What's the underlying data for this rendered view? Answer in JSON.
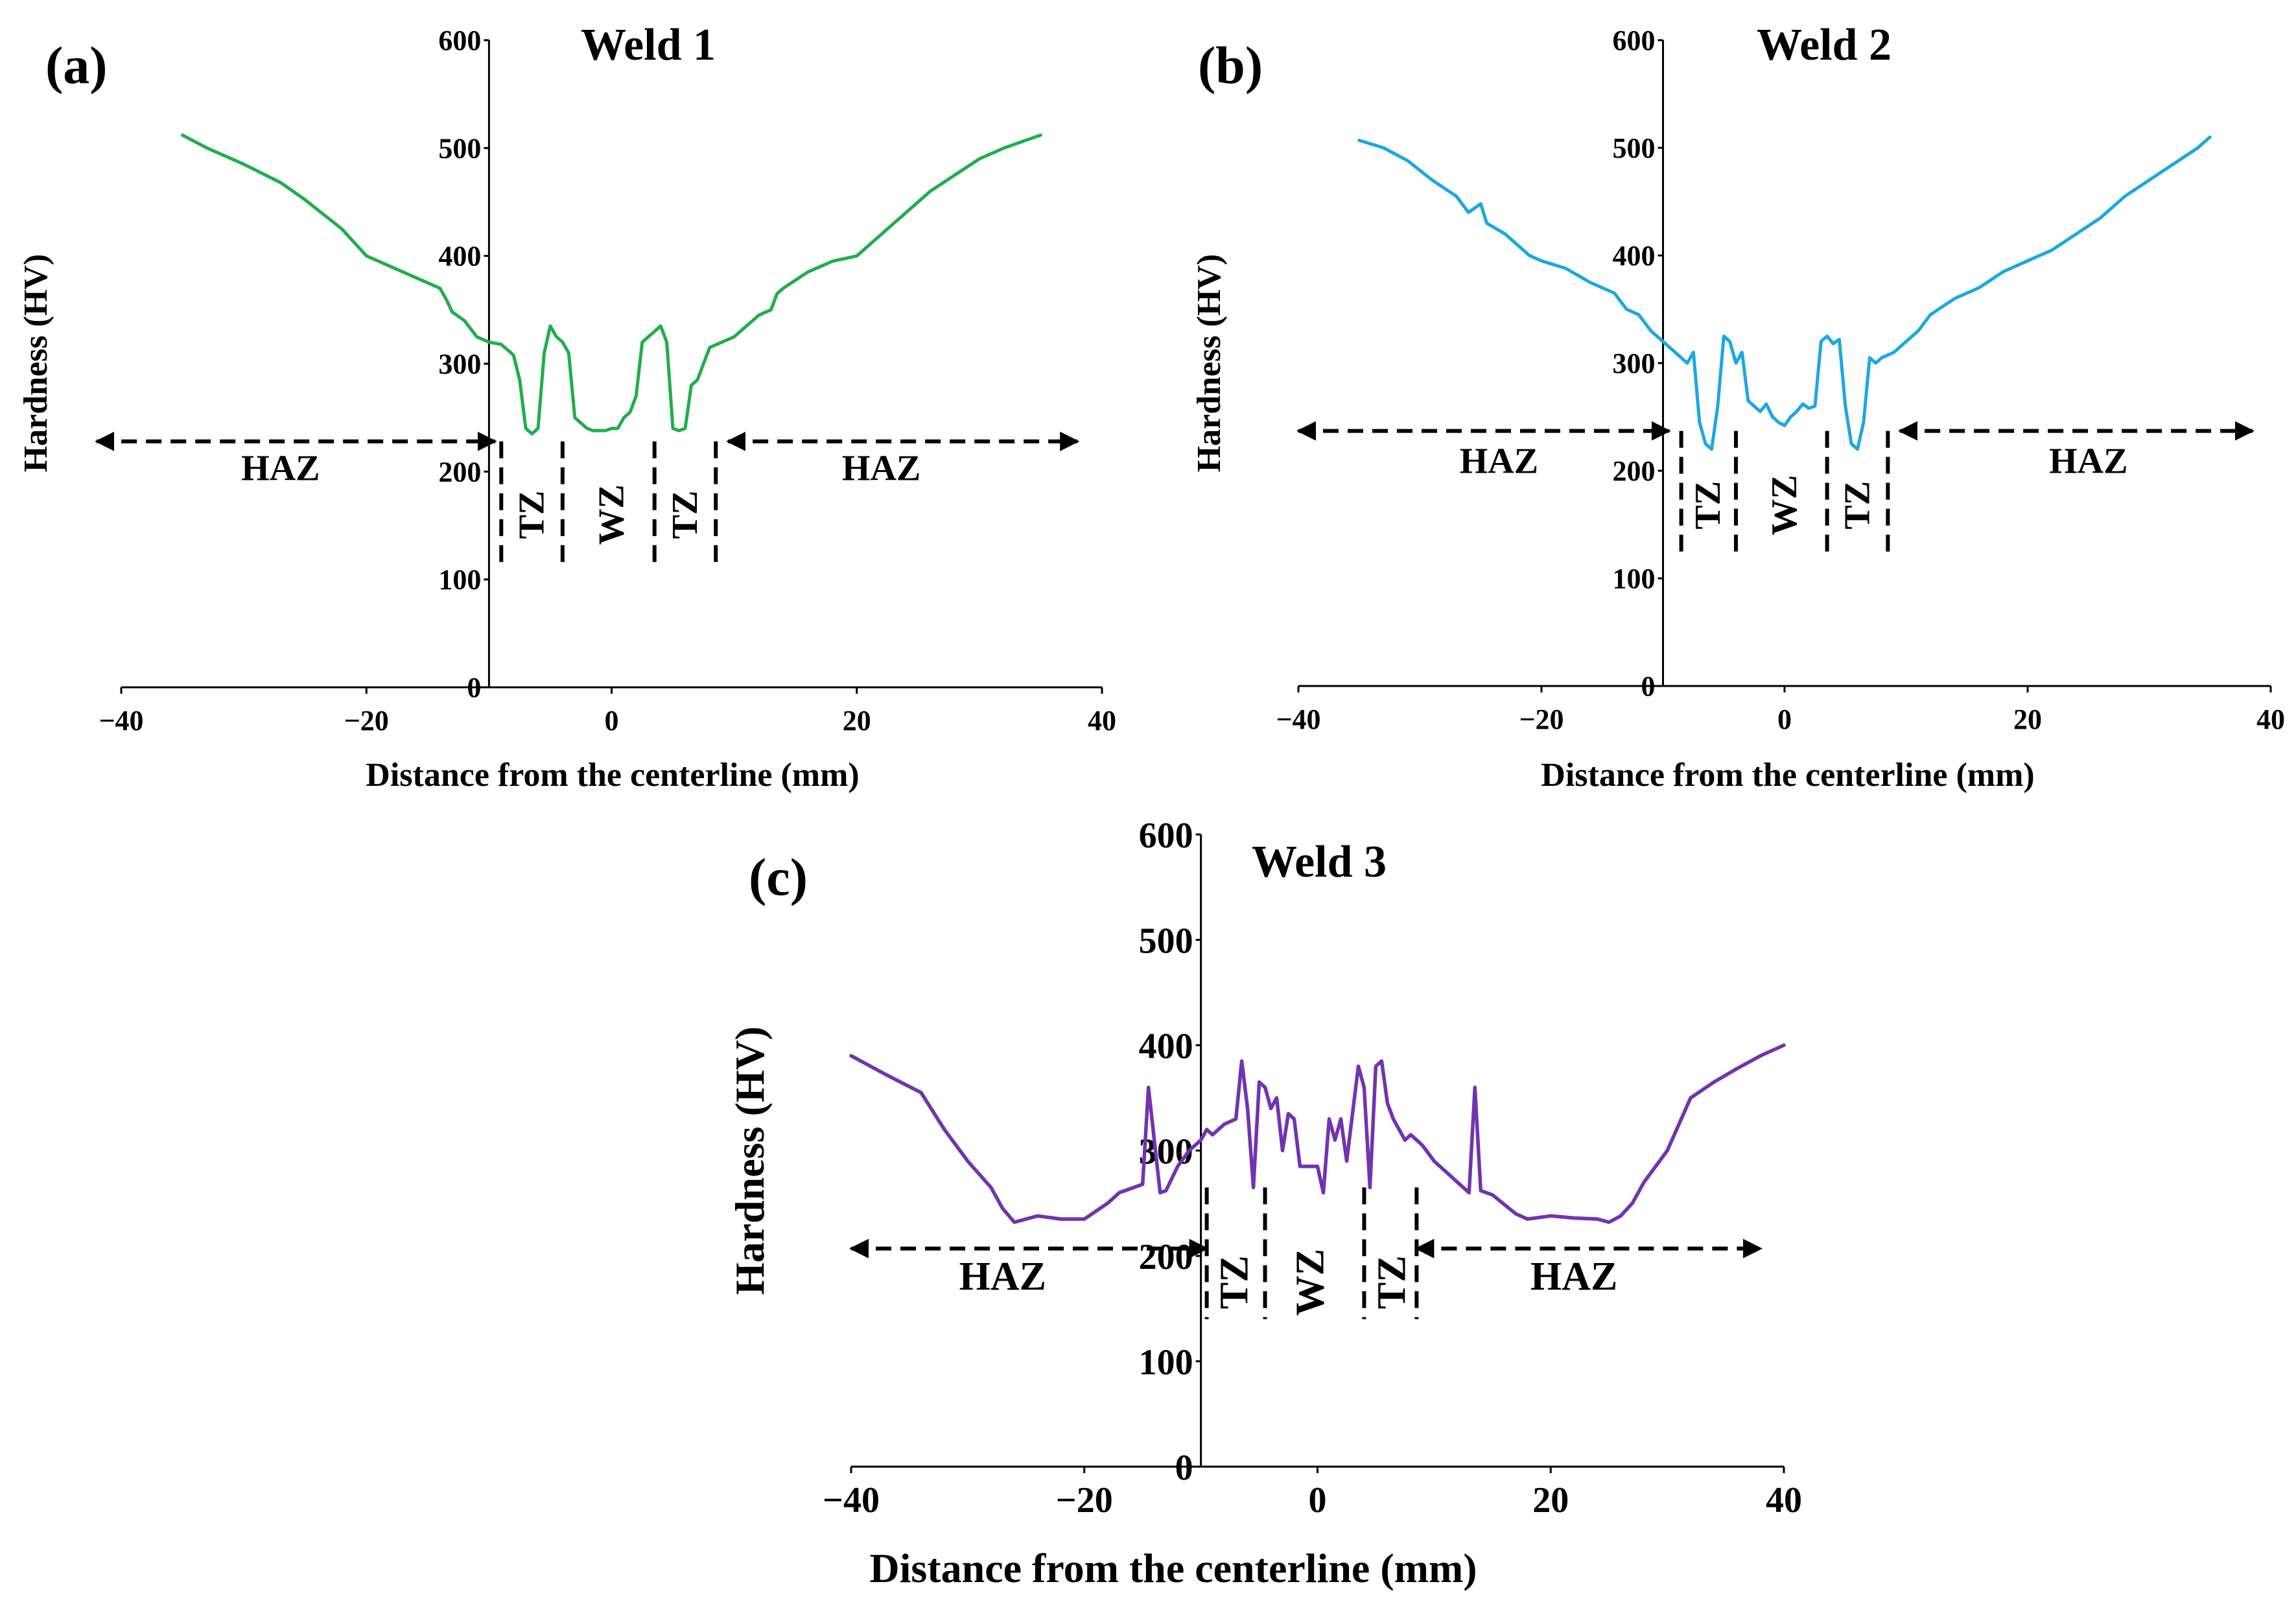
{
  "chart_data": [
    {
      "id": "a",
      "type": "line",
      "panel_label": "(a)",
      "title": "Weld 1",
      "xlabel": "Distance from the centerline (mm)",
      "ylabel": "Hardness (HV)",
      "xlim": [
        -40,
        40
      ],
      "ylim": [
        0,
        600
      ],
      "x_ticks": [
        -40,
        -20,
        0,
        20,
        40
      ],
      "x_tick_labels": [
        "−40",
        "−20",
        "0",
        "20",
        "40"
      ],
      "y_ticks": [
        0,
        100,
        200,
        300,
        400,
        500,
        600
      ],
      "y_tick_labels": [
        "0",
        "100",
        "200",
        "300",
        "400",
        "500",
        "600"
      ],
      "color": "#1fae4a",
      "series": [
        {
          "name": "Weld 1",
          "x": [
            -35,
            -33,
            -30,
            -27,
            -25,
            -22,
            -20,
            -18,
            -16,
            -14,
            -13.5,
            -13,
            -12,
            -11,
            -10,
            -9,
            -8,
            -7.5,
            -7,
            -6.5,
            -6,
            -5.5,
            -5,
            -4.5,
            -4,
            -3.5,
            -3,
            -2.5,
            -2,
            -1.5,
            -1,
            -0.5,
            0,
            0.5,
            1,
            1.5,
            2,
            2.5,
            3,
            3.5,
            4,
            4.5,
            5,
            5.5,
            6,
            6.5,
            7,
            7.5,
            8,
            9,
            10,
            12,
            13,
            13.5,
            14,
            16,
            18,
            20,
            22,
            24,
            26,
            28,
            30,
            32,
            34,
            35
          ],
          "y": [
            512,
            500,
            485,
            468,
            452,
            425,
            400,
            390,
            380,
            370,
            360,
            348,
            340,
            325,
            320,
            318,
            308,
            285,
            240,
            235,
            240,
            310,
            335,
            325,
            320,
            310,
            250,
            245,
            240,
            238,
            238,
            238,
            240,
            240,
            250,
            255,
            270,
            320,
            325,
            330,
            335,
            320,
            240,
            238,
            240,
            280,
            285,
            300,
            315,
            320,
            325,
            345,
            350,
            365,
            370,
            385,
            395,
            400,
            420,
            440,
            460,
            475,
            490,
            500,
            508,
            512
          ]
        }
      ],
      "arrows": [
        [
          -42,
          -9.5
        ],
        [
          9.5,
          38
        ]
      ],
      "arrow_y": 228,
      "zone_lines_x": [
        -9,
        -4,
        3.5,
        8.5
      ],
      "zone_lines_y": [
        113,
        228
      ],
      "zone_labels": [
        {
          "text": "HAZ",
          "x": -27,
          "y": 192,
          "rotate": false
        },
        {
          "text": "TZ",
          "x": -6.5,
          "y": 160,
          "rotate": true
        },
        {
          "text": "WZ",
          "x": 0,
          "y": 160,
          "rotate": true
        },
        {
          "text": "TZ",
          "x": 6,
          "y": 160,
          "rotate": true
        },
        {
          "text": "HAZ",
          "x": 22,
          "y": 192,
          "rotate": false
        }
      ]
    },
    {
      "id": "b",
      "type": "line",
      "panel_label": "(b)",
      "title": "Weld 2",
      "xlabel": "Distance from the centerline (mm)",
      "ylabel": "Hardness (HV)",
      "xlim": [
        -40,
        40
      ],
      "ylim": [
        0,
        600
      ],
      "x_ticks": [
        -40,
        -20,
        0,
        20,
        40
      ],
      "x_tick_labels": [
        "−40",
        "−20",
        "0",
        "20",
        "40"
      ],
      "y_ticks": [
        0,
        100,
        200,
        300,
        400,
        500,
        600
      ],
      "y_tick_labels": [
        "0",
        "100",
        "200",
        "300",
        "400",
        "500",
        "600"
      ],
      "color": "#1ba7e4",
      "series": [
        {
          "name": "Weld 2",
          "x": [
            -35,
            -33,
            -31,
            -29,
            -27,
            -26,
            -25,
            -24.5,
            -23,
            -22,
            -21,
            -20,
            -18,
            -16,
            -14,
            -13,
            -12,
            -11,
            -10,
            -9,
            -8.5,
            -8,
            -7.5,
            -7,
            -6.5,
            -6,
            -5.5,
            -5,
            -4.5,
            -4,
            -3.5,
            -3,
            -2.5,
            -2,
            -1.5,
            -1,
            -0.5,
            0,
            0.5,
            1,
            1.5,
            2,
            2.5,
            3,
            3.5,
            4,
            4.5,
            5,
            5.5,
            6,
            6.5,
            7,
            7.5,
            8,
            9,
            10,
            11,
            12,
            14,
            16,
            18,
            20,
            22,
            24,
            26,
            28,
            30,
            32,
            34,
            35
          ],
          "y": [
            507,
            500,
            488,
            470,
            455,
            440,
            448,
            430,
            420,
            410,
            400,
            395,
            388,
            375,
            365,
            350,
            345,
            330,
            320,
            310,
            305,
            300,
            310,
            245,
            225,
            220,
            260,
            325,
            320,
            300,
            310,
            265,
            260,
            255,
            262,
            250,
            245,
            242,
            250,
            255,
            262,
            258,
            260,
            320,
            325,
            318,
            322,
            260,
            225,
            220,
            245,
            305,
            300,
            305,
            310,
            320,
            330,
            345,
            360,
            370,
            385,
            395,
            405,
            420,
            435,
            455,
            470,
            485,
            500,
            510
          ]
        }
      ],
      "arrows": [
        [
          -40,
          -9.5
        ],
        [
          9.5,
          38.5
        ]
      ],
      "arrow_y": 237,
      "zone_lines_x": [
        -8.5,
        -4,
        3.5,
        8.5
      ],
      "zone_lines_y": [
        122,
        237
      ],
      "zone_labels": [
        {
          "text": "HAZ",
          "x": -23.5,
          "y": 198,
          "rotate": false
        },
        {
          "text": "TZ",
          "x": -6.3,
          "y": 168,
          "rotate": true
        },
        {
          "text": "WZ",
          "x": 0,
          "y": 168,
          "rotate": true
        },
        {
          "text": "TZ",
          "x": 6,
          "y": 168,
          "rotate": true
        },
        {
          "text": "HAZ",
          "x": 25,
          "y": 198,
          "rotate": false
        }
      ]
    },
    {
      "id": "c",
      "type": "line",
      "panel_label": "(c)",
      "title": "Weld 3",
      "xlabel": "Distance from the centerline (mm)",
      "ylabel": "Hardness (HV)",
      "xlim": [
        -40,
        40
      ],
      "ylim": [
        0,
        600
      ],
      "x_ticks": [
        -40,
        -20,
        0,
        20,
        40
      ],
      "x_tick_labels": [
        "−40",
        "−20",
        "0",
        "20",
        "40"
      ],
      "y_ticks": [
        0,
        100,
        200,
        300,
        400,
        500,
        600
      ],
      "y_tick_labels": [
        "0",
        "100",
        "200",
        "300",
        "400",
        "500",
        "600"
      ],
      "color": "#7233b0",
      "series": [
        {
          "name": "Weld 3",
          "x": [
            -40,
            -37,
            -34,
            -32,
            -30,
            -28,
            -27,
            -26,
            -25,
            -24,
            -22,
            -20,
            -18,
            -17,
            -15,
            -14.5,
            -14,
            -13.5,
            -13,
            -12,
            -11,
            -10,
            -9.5,
            -9,
            -8,
            -7,
            -6.5,
            -6,
            -5.5,
            -5,
            -4.5,
            -4,
            -3.5,
            -3,
            -2.5,
            -2,
            -1.5,
            -1,
            0,
            0.5,
            1,
            1.5,
            2,
            2.5,
            3,
            3.5,
            4,
            4.5,
            5,
            5.5,
            6,
            6.5,
            7,
            7.5,
            8,
            9,
            10,
            11,
            12,
            13,
            13.5,
            14,
            15,
            17,
            18,
            20,
            22,
            24,
            25,
            26,
            27,
            28,
            30,
            32,
            34,
            36,
            38,
            40
          ],
          "y": [
            390,
            372,
            355,
            320,
            290,
            265,
            245,
            232,
            235,
            238,
            235,
            235,
            250,
            260,
            268,
            360,
            310,
            260,
            262,
            285,
            300,
            310,
            320,
            315,
            325,
            330,
            385,
            340,
            265,
            365,
            360,
            340,
            350,
            300,
            335,
            330,
            285,
            285,
            285,
            260,
            330,
            310,
            330,
            290,
            335,
            380,
            360,
            265,
            380,
            385,
            345,
            330,
            320,
            310,
            315,
            305,
            290,
            280,
            270,
            260,
            360,
            262,
            258,
            240,
            235,
            238,
            236,
            235,
            232,
            238,
            250,
            270,
            300,
            350,
            365,
            378,
            390,
            400
          ]
        }
      ],
      "arrows": [
        [
          -40,
          -9.5
        ],
        [
          8.5,
          38
        ]
      ],
      "arrow_y": 207,
      "zone_lines_x": [
        -9.5,
        -4.5,
        4,
        8.5
      ],
      "zone_lines_y": [
        140,
        265
      ],
      "zone_labels": [
        {
          "text": "HAZ",
          "x": -27,
          "y": 168,
          "rotate": false
        },
        {
          "text": "TZ",
          "x": -7,
          "y": 175,
          "rotate": true
        },
        {
          "text": "WZ",
          "x": -0.5,
          "y": 175,
          "rotate": true
        },
        {
          "text": "TZ",
          "x": 6.5,
          "y": 175,
          "rotate": true
        },
        {
          "text": "HAZ",
          "x": 22,
          "y": 168,
          "rotate": false
        }
      ]
    }
  ]
}
